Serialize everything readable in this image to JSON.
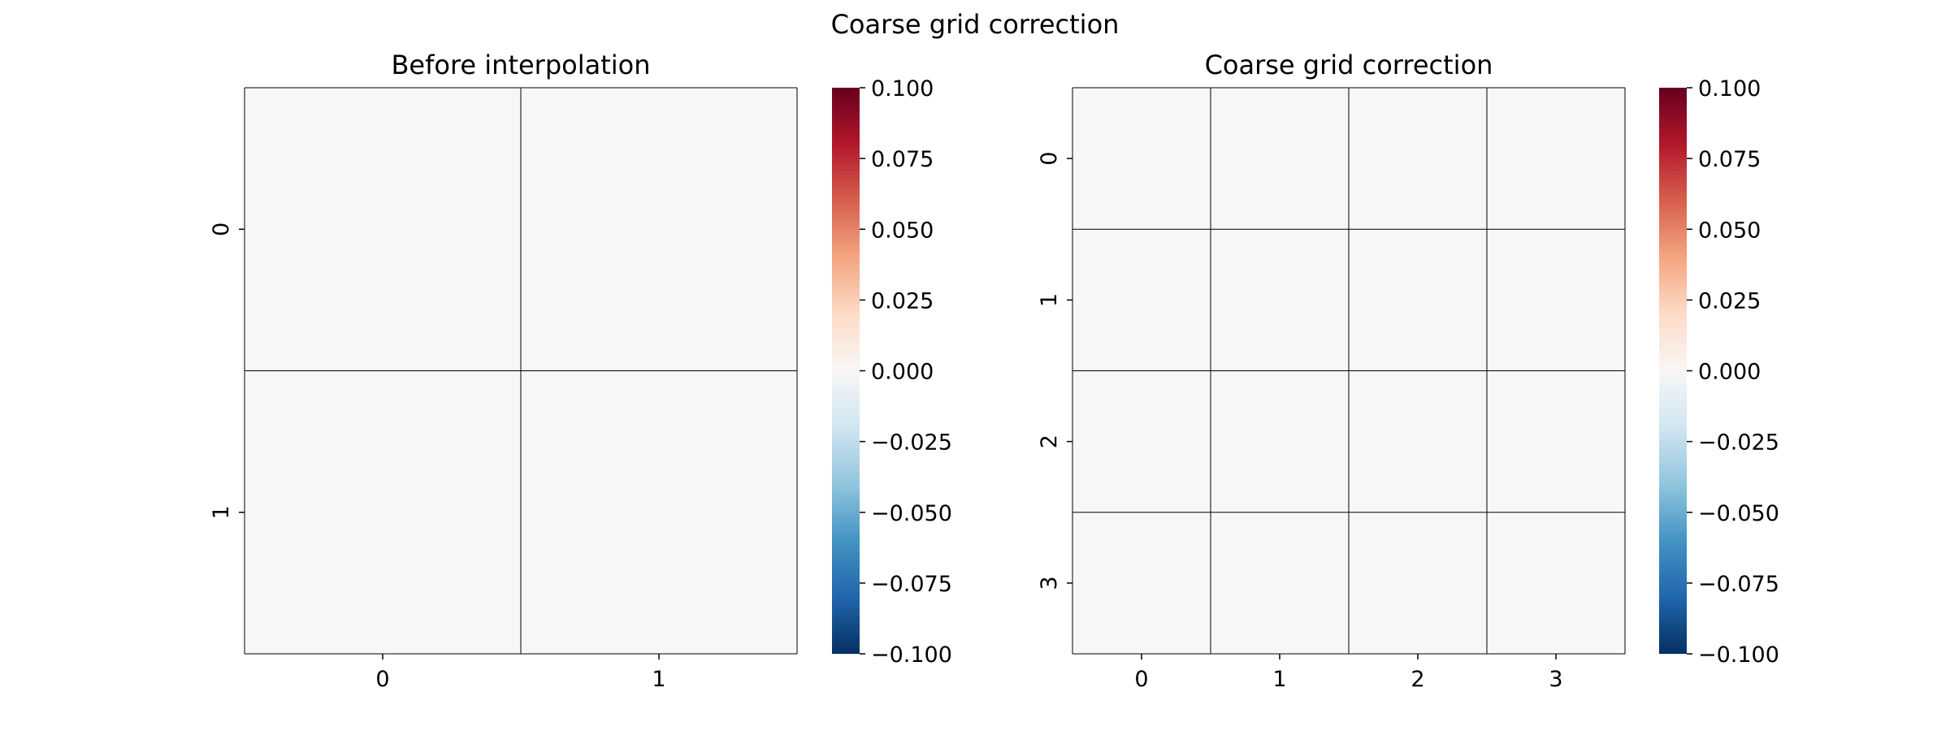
{
  "figure": {
    "suptitle": "Coarse grid correction"
  },
  "colorbar": {
    "cmap_stops": [
      "#053061",
      "#2166ac",
      "#4393c3",
      "#92c5de",
      "#d1e5f0",
      "#f7f7f7",
      "#fddbc7",
      "#f4a582",
      "#d6604d",
      "#b2182b",
      "#67001f"
    ]
  },
  "chart_data": [
    {
      "type": "heatmap",
      "title": "Before interpolation",
      "xlabel": "",
      "ylabel": "",
      "x_tick_labels": [
        "0",
        "1"
      ],
      "y_tick_labels": [
        "0",
        "1"
      ],
      "values": [
        [
          0,
          0
        ],
        [
          0,
          0
        ]
      ],
      "vmin": -0.1,
      "vmax": 0.1,
      "colormap": "RdBu_r",
      "colorbar_ticks": [
        "0.100",
        "0.075",
        "0.050",
        "0.025",
        "0.000",
        "−0.025",
        "−0.050",
        "−0.075",
        "−0.100"
      ]
    },
    {
      "type": "heatmap",
      "title": "Coarse grid correction",
      "xlabel": "",
      "ylabel": "",
      "x_tick_labels": [
        "0",
        "1",
        "2",
        "3"
      ],
      "y_tick_labels": [
        "0",
        "1",
        "2",
        "3"
      ],
      "values": [
        [
          0,
          0,
          0,
          0
        ],
        [
          0,
          0,
          0,
          0
        ],
        [
          0,
          0,
          0,
          0
        ],
        [
          0,
          0,
          0,
          0
        ]
      ],
      "vmin": -0.1,
      "vmax": 0.1,
      "colormap": "RdBu_r",
      "colorbar_ticks": [
        "0.100",
        "0.075",
        "0.050",
        "0.025",
        "0.000",
        "−0.025",
        "−0.050",
        "−0.075",
        "−0.100"
      ]
    }
  ]
}
